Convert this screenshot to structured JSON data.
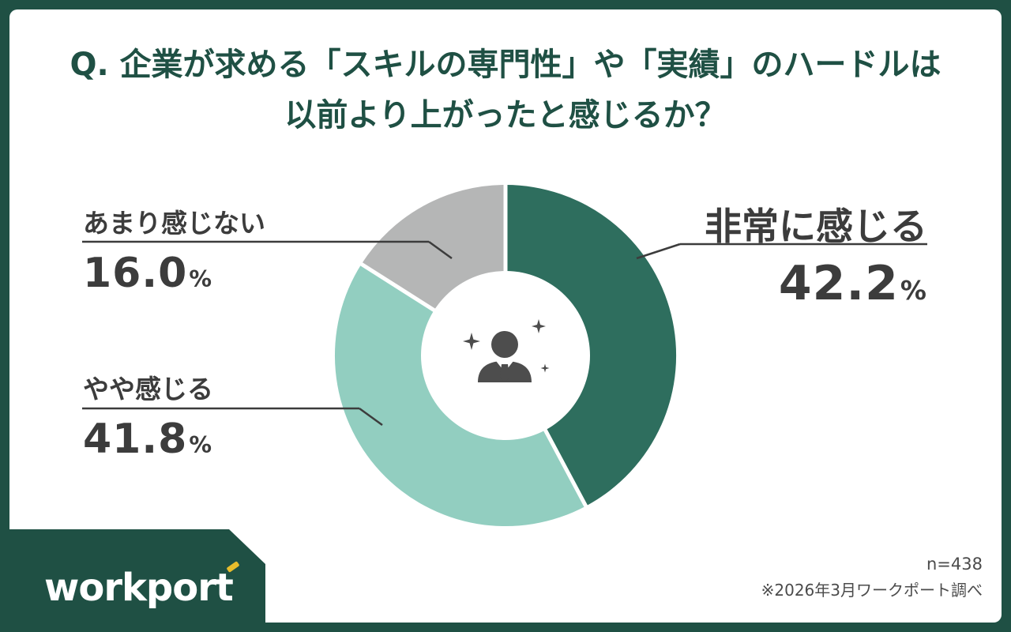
{
  "title": {
    "line1": "Q. 企業が求める「スキルの専門性」や「実績」のハードルは",
    "line2": "以前より上がったと感じるか？"
  },
  "theme": {
    "frame_green": "#1F5044",
    "text_gray": "#3C3C3C",
    "footer_gray": "#4B4B4B",
    "accent_yellow": "#E8BD2C",
    "white": "#FFFFFF"
  },
  "chart_data": {
    "type": "pie",
    "donut": true,
    "title": "企業が求める「スキルの専門性」や「実績」のハードルは以前より上がったと感じるか？",
    "unit": "%",
    "start_angle": "top",
    "direction": "clockwise",
    "center_icon": "person-with-sparkles",
    "segments": [
      {
        "id": "very",
        "label": "非常に感じる",
        "value": 42.2,
        "display": "42.2",
        "unit": "%",
        "color": "#2E6E5E"
      },
      {
        "id": "somewhat",
        "label": "やや感じる",
        "value": 41.8,
        "display": "41.8",
        "unit": "%",
        "color": "#92CEC0"
      },
      {
        "id": "notmuch",
        "label": "あまり感じない",
        "value": 16.0,
        "display": "16.0",
        "unit": "%",
        "color": "#B5B6B6"
      }
    ],
    "sample_size": "n=438",
    "source": "※2026年3月ワークポート調べ"
  },
  "footer": {
    "logo_text": "workport",
    "sample_size": "n=438",
    "source_note": "※2026年3月ワークポート調べ"
  }
}
